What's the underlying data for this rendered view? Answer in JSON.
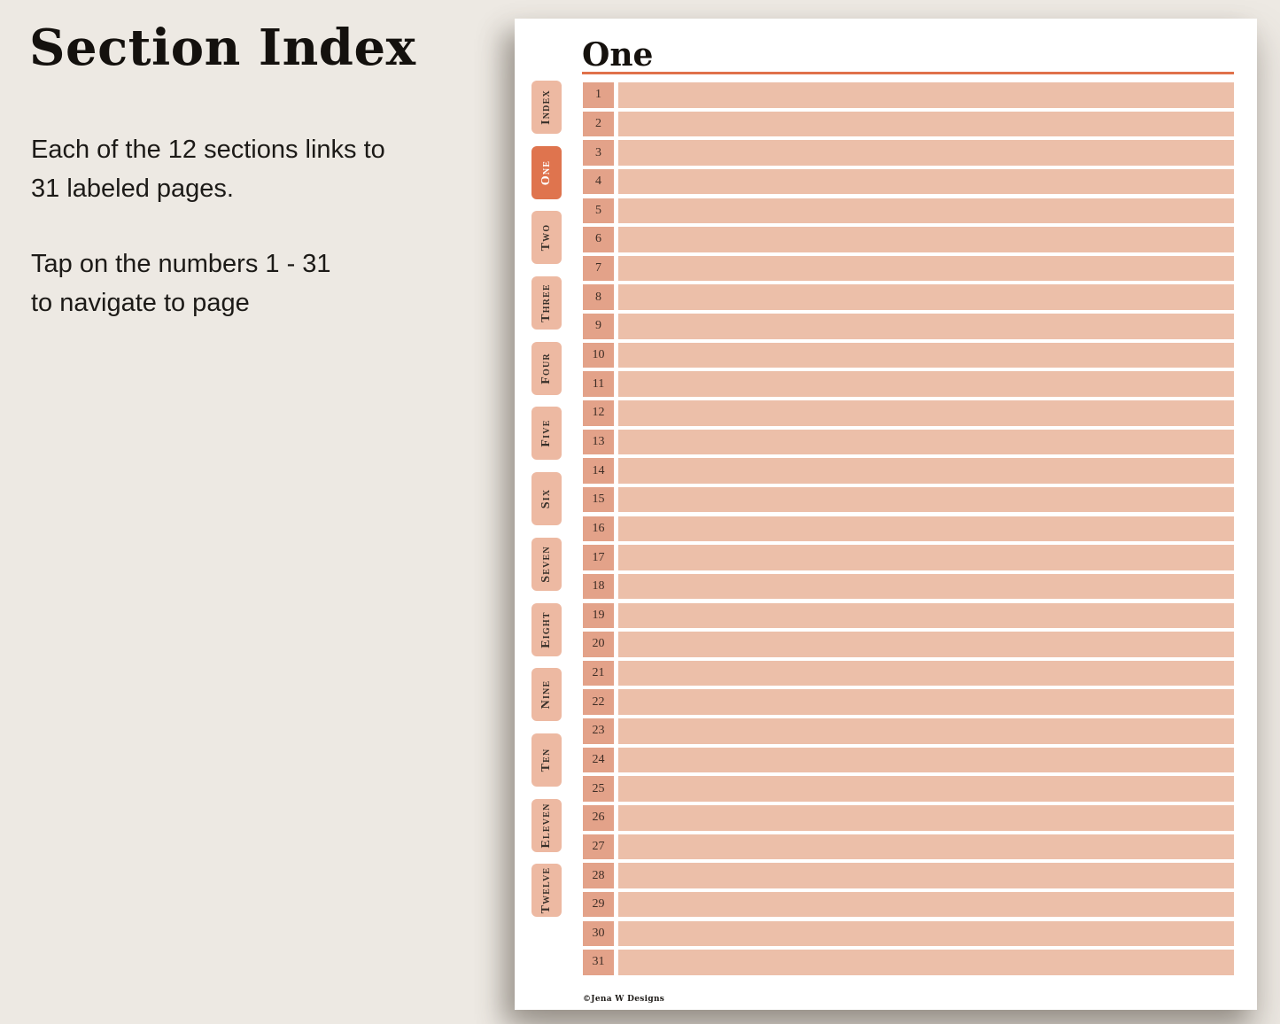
{
  "colors": {
    "background": "#EDE9E3",
    "page": "#FFFFFF",
    "tab_inactive": "#EDB9A2",
    "tab_active": "#DF744E",
    "number_cell": "#E3A289",
    "row_bar": "#ECBFA9",
    "header_rule": "#E0714A",
    "text": "#171310"
  },
  "left_panel": {
    "title": "Section Index",
    "paragraph1": "Each of the 12 sections links to\n31 labeled pages.",
    "paragraph2": "Tap on the numbers 1 - 31\nto navigate to page"
  },
  "page": {
    "header_title": "One",
    "tabs": [
      {
        "label": "Index",
        "name": "tab-index",
        "active": false
      },
      {
        "label": "One",
        "name": "tab-one",
        "active": true
      },
      {
        "label": "Two",
        "name": "tab-two",
        "active": false
      },
      {
        "label": "Three",
        "name": "tab-three",
        "active": false
      },
      {
        "label": "Four",
        "name": "tab-four",
        "active": false
      },
      {
        "label": "Five",
        "name": "tab-five",
        "active": false
      },
      {
        "label": "Six",
        "name": "tab-six",
        "active": false
      },
      {
        "label": "Seven",
        "name": "tab-seven",
        "active": false
      },
      {
        "label": "Eight",
        "name": "tab-eight",
        "active": false
      },
      {
        "label": "Nine",
        "name": "tab-nine",
        "active": false
      },
      {
        "label": "Ten",
        "name": "tab-ten",
        "active": false
      },
      {
        "label": "Eleven",
        "name": "tab-eleven",
        "active": false
      },
      {
        "label": "Twelve",
        "name": "tab-twelve",
        "active": false
      }
    ],
    "rows": [
      "1",
      "2",
      "3",
      "4",
      "5",
      "6",
      "7",
      "8",
      "9",
      "10",
      "11",
      "12",
      "13",
      "14",
      "15",
      "16",
      "17",
      "18",
      "19",
      "20",
      "21",
      "22",
      "23",
      "24",
      "25",
      "26",
      "27",
      "28",
      "29",
      "30",
      "31"
    ],
    "footer": "©Jena W Designs"
  }
}
